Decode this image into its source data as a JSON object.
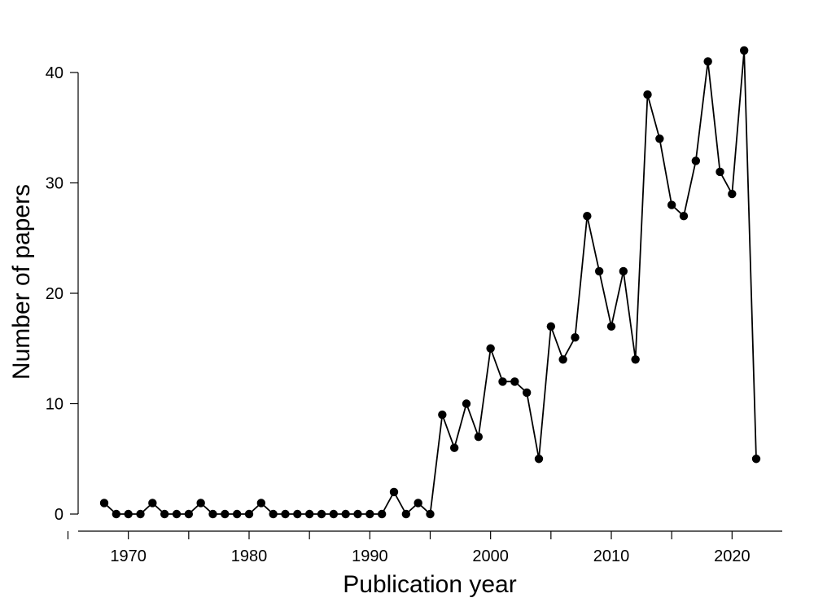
{
  "chart_data": {
    "type": "line",
    "title": "",
    "xlabel": "Publication year",
    "ylabel": "Number of papers",
    "xlim": [
      1966,
      2024
    ],
    "ylim": [
      0,
      42
    ],
    "xticks": [
      1970,
      1980,
      1990,
      2000,
      2010,
      2020
    ],
    "xtick_labels": [
      "1970",
      "1980",
      "1990",
      "2000",
      "2010",
      "2020"
    ],
    "yticks": [
      0,
      10,
      20,
      30,
      40
    ],
    "ytick_labels": [
      "0",
      "10",
      "20",
      "30",
      "40"
    ],
    "grid": false,
    "legend": "none",
    "series": [
      {
        "color": "#000000",
        "marker": "filled-circle",
        "x": [
          1968,
          1969,
          1970,
          1971,
          1972,
          1973,
          1974,
          1975,
          1976,
          1977,
          1978,
          1979,
          1980,
          1981,
          1982,
          1983,
          1984,
          1985,
          1986,
          1987,
          1988,
          1989,
          1990,
          1991,
          1992,
          1993,
          1994,
          1995,
          1996,
          1997,
          1998,
          1999,
          2000,
          2001,
          2002,
          2003,
          2004,
          2005,
          2006,
          2007,
          2008,
          2009,
          2010,
          2011,
          2012,
          2013,
          2014,
          2015,
          2016,
          2017,
          2018,
          2019,
          2020,
          2021,
          2022
        ],
        "values": [
          1,
          0,
          0,
          0,
          1,
          0,
          0,
          0,
          1,
          0,
          0,
          0,
          0,
          1,
          0,
          0,
          0,
          0,
          0,
          0,
          0,
          0,
          0,
          0,
          2,
          0,
          1,
          0,
          9,
          6,
          10,
          7,
          15,
          12,
          12,
          11,
          5,
          17,
          14,
          16,
          27,
          22,
          17,
          22,
          14,
          38,
          34,
          28,
          27,
          32,
          41,
          31,
          29,
          42,
          5
        ]
      }
    ]
  }
}
